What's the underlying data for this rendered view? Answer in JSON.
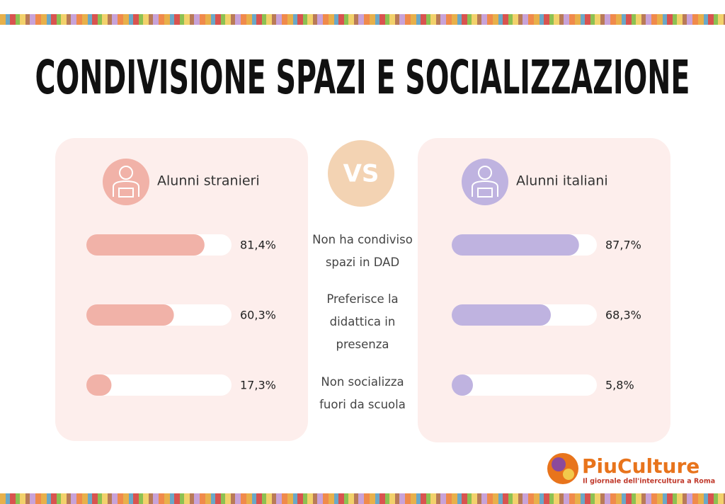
{
  "chart_data": {
    "type": "bar",
    "title": "CONDIVISIONE SPAZI E SOCIALIZZAZIONE",
    "categories": [
      "Non ha condiviso spazi in DAD",
      "Preferisce la didattica in presenza",
      "Non socializza fuori da scuola"
    ],
    "series": [
      {
        "name": "Alunni stranieri",
        "color": "#f1b2a8",
        "values": [
          81.4,
          60.3,
          17.3
        ],
        "value_labels": [
          "81,4%",
          "60,3%",
          "17,3%"
        ]
      },
      {
        "name": "Alunni italiani",
        "color": "#bfb3e0",
        "values": [
          87.7,
          68.3,
          5.8
        ],
        "value_labels": [
          "87,7%",
          "68,3%",
          "5,8%"
        ]
      }
    ],
    "xlim": [
      0,
      100
    ]
  },
  "vs": "VS",
  "logo": {
    "name": "PiuCulture",
    "tagline": "Il giornale dell'intercultura a Roma"
  }
}
